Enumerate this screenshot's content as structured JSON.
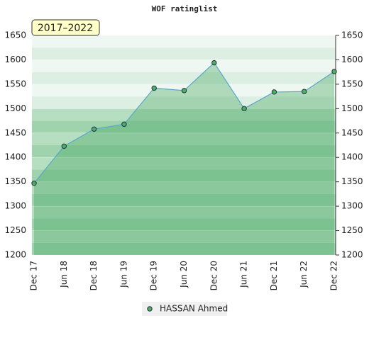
{
  "chart_data": {
    "type": "line",
    "title": "WOF ratinglist",
    "subtitle": "2017–2022",
    "categories": [
      "Dec 17",
      "Jun 18",
      "Dec 18",
      "Jun 19",
      "Dec 19",
      "Jun 20",
      "Dec 20",
      "Jun 21",
      "Dec 21",
      "Jun 22",
      "Dec 22"
    ],
    "series": [
      {
        "name": "HASSAN Ahmed",
        "color": "#5aa7c8",
        "marker_color": "#4caf61",
        "values": [
          1347,
          1423,
          1458,
          1468,
          1542,
          1537,
          1594,
          1500,
          1534,
          1535,
          1576
        ]
      }
    ],
    "ylim": [
      1200,
      1650
    ],
    "yticks": [
      1200,
      1250,
      1300,
      1350,
      1400,
      1450,
      1500,
      1550,
      1600,
      1650
    ],
    "grid": true
  }
}
